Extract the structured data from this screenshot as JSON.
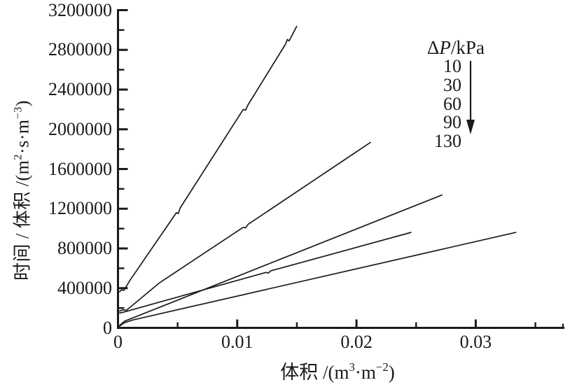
{
  "figure": {
    "background": "#ffffff",
    "ink_color": "#1a1a1a"
  },
  "labels": {
    "y_axis": {
      "pre": "时间 / 体积 /(m",
      "sup1": "2",
      "mid": "·s·m",
      "sup2": "−3",
      "post": ")"
    },
    "x_axis": {
      "pre": "体积 /(m",
      "sup1": "3",
      "mid": "·m",
      "sup2": "−2",
      "post": ")"
    }
  },
  "legend": {
    "title_delta": "Δ",
    "title_symbol": "P",
    "title_rest": "/kPa",
    "entries": [
      "10",
      "30",
      "60",
      "90",
      "130"
    ],
    "arrow_icon": "down-arrow"
  },
  "chart_data": {
    "type": "line",
    "title": "",
    "xlabel": "体积 /(m³·m⁻²)",
    "ylabel": "时间 / 体积 /(m²·s·m⁻³)",
    "xlim": [
      0,
      0.037
    ],
    "ylim": [
      0,
      3200000
    ],
    "grid": false,
    "legend_position": "upper right",
    "legend_title": "ΔP/kPa",
    "legend_note": "arrow points from 10 down to 130 (decreasing slope order)",
    "x_axis": {
      "major_values": [
        0,
        0.01,
        0.02,
        0.03
      ],
      "major_labels": [
        "0",
        "0.01",
        "0.02",
        "0.03"
      ],
      "minor_values": [
        0.005,
        0.015,
        0.025,
        0.035
      ]
    },
    "y_axis": {
      "major_values": [
        0,
        400000,
        800000,
        1200000,
        1600000,
        2000000,
        2400000,
        2800000,
        3200000
      ],
      "major_labels": [
        "0",
        "400000",
        "800000",
        "1200000",
        "1600000",
        "2000000",
        "2400000",
        "2800000",
        "3200000"
      ],
      "minor_values": [
        200000,
        600000,
        1000000,
        1400000,
        1800000,
        2200000,
        2600000,
        3000000
      ]
    },
    "series": [
      {
        "name": "ΔP = 10 kPa",
        "pressure_kPa": 10,
        "points": [
          [
            0.0001,
            360000
          ],
          [
            0.0003,
            383000
          ],
          [
            0.0005,
            378000
          ],
          [
            0.001,
            478000
          ],
          [
            0.0049,
            1160000
          ],
          [
            0.00505,
            1150000
          ],
          [
            0.0052,
            1205000
          ],
          [
            0.0105,
            2200000
          ],
          [
            0.0107,
            2193000
          ],
          [
            0.0109,
            2245000
          ],
          [
            0.01405,
            2858000
          ],
          [
            0.0142,
            2905000
          ],
          [
            0.01435,
            2890000
          ],
          [
            0.015,
            3040000
          ]
        ]
      },
      {
        "name": "ΔP = 30 kPa",
        "pressure_kPa": 30,
        "points": [
          [
            0.0001,
            168000
          ],
          [
            0.0004,
            182000
          ],
          [
            0.0007,
            176000
          ],
          [
            0.0035,
            455000
          ],
          [
            0.0105,
            1013000
          ],
          [
            0.0107,
            1007000
          ],
          [
            0.0109,
            1042000
          ],
          [
            0.0212,
            1870000
          ]
        ]
      },
      {
        "name": "ΔP = 60 kPa",
        "pressure_kPa": 60,
        "points": [
          [
            0.0001,
            22000
          ],
          [
            0.0006,
            70000
          ],
          [
            0.0015,
            112000
          ],
          [
            0.014,
            710000
          ],
          [
            0.0272,
            1340000
          ]
        ]
      },
      {
        "name": "ΔP = 90 kPa",
        "pressure_kPa": 90,
        "points": [
          [
            0.0001,
            148000
          ],
          [
            0.0006,
            163000
          ],
          [
            0.0124,
            558000
          ],
          [
            0.0126,
            552000
          ],
          [
            0.0128,
            574000
          ],
          [
            0.0246,
            962000
          ]
        ]
      },
      {
        "name": "ΔP = 130 kPa",
        "pressure_kPa": 130,
        "points": [
          [
            0.0001,
            15000
          ],
          [
            0.0005,
            50000
          ],
          [
            0.0012,
            78000
          ],
          [
            0.0334,
            963000
          ]
        ]
      }
    ]
  }
}
